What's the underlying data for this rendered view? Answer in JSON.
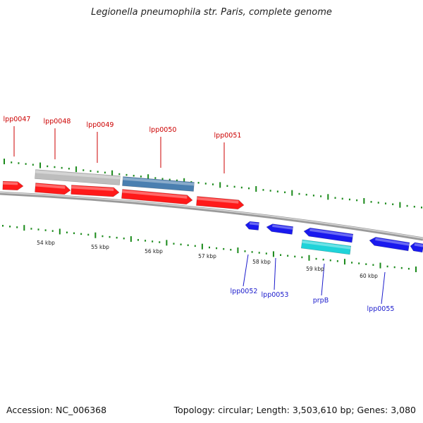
{
  "title": "Legionella pneumophila str. Paris, complete genome",
  "footer": {
    "accession": "Accession: NC_006368",
    "summary": "Topology: circular; Length: 3,503,610 bp; Genes: 3,080"
  },
  "colors": {
    "forward_gene": "#ff1a1a",
    "forward_label": "#cc0000",
    "reverse_gene": "#1a1aee",
    "reverse_label": "#1a1acc",
    "grey_feature": "#bdbdbd",
    "steelblue_feature": "#4a7fb0",
    "cyan_feature": "#1fd3d9",
    "tick": "#1a8a1a",
    "backbone": "#777777"
  },
  "upper_labels": [
    "lpp0047",
    "lpp0048",
    "lpp0049",
    "lpp0050",
    "lpp0051"
  ],
  "lower_labels": [
    "lpp0052",
    "lpp0053",
    "prpB",
    "lpp0055"
  ],
  "scale_labels": [
    "54 kbp",
    "55 kbp",
    "56 kbp",
    "57 kbp",
    "58 kbp",
    "59 kbp",
    "60 kbp"
  ]
}
